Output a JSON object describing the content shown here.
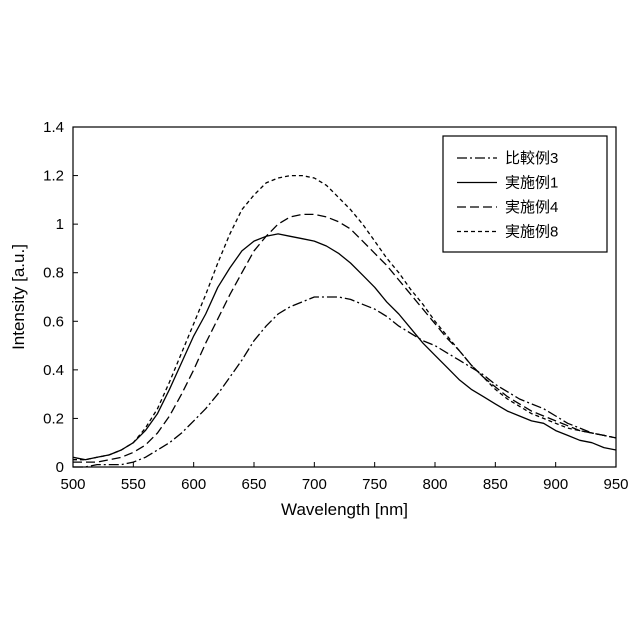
{
  "chart_data": {
    "type": "line",
    "xlabel": "Wavelength [nm]",
    "ylabel": "Intensity [a.u.]",
    "xlim": [
      500,
      950
    ],
    "ylim": [
      0,
      1.4
    ],
    "xticks": [
      500,
      550,
      600,
      650,
      700,
      750,
      800,
      850,
      900,
      950
    ],
    "yticks": [
      0,
      0.2,
      0.4,
      0.6,
      0.8,
      1,
      1.2,
      1.4
    ],
    "grid": false,
    "legend_position": "top-right",
    "series": [
      {
        "name": "比較例3",
        "dash": "dash-dot",
        "color": "#000000",
        "x": [
          500,
          510,
          520,
          530,
          540,
          550,
          560,
          570,
          580,
          590,
          600,
          610,
          620,
          630,
          640,
          650,
          660,
          670,
          680,
          690,
          700,
          710,
          720,
          730,
          740,
          750,
          760,
          770,
          780,
          790,
          800,
          810,
          820,
          830,
          840,
          850,
          860,
          870,
          880,
          890,
          900,
          910,
          920,
          930,
          940,
          950
        ],
        "y": [
          0.0,
          0.0,
          0.01,
          0.01,
          0.01,
          0.02,
          0.04,
          0.07,
          0.1,
          0.14,
          0.19,
          0.24,
          0.3,
          0.37,
          0.44,
          0.52,
          0.58,
          0.63,
          0.66,
          0.68,
          0.7,
          0.7,
          0.7,
          0.69,
          0.67,
          0.65,
          0.62,
          0.58,
          0.55,
          0.52,
          0.5,
          0.47,
          0.44,
          0.41,
          0.38,
          0.34,
          0.31,
          0.28,
          0.26,
          0.24,
          0.21,
          0.18,
          0.16,
          0.14,
          0.13,
          0.12
        ]
      },
      {
        "name": "実施例1",
        "dash": "solid",
        "color": "#000000",
        "x": [
          500,
          510,
          520,
          530,
          540,
          550,
          560,
          570,
          580,
          590,
          600,
          610,
          620,
          630,
          640,
          650,
          660,
          670,
          680,
          690,
          700,
          710,
          720,
          730,
          740,
          750,
          760,
          770,
          780,
          790,
          800,
          810,
          820,
          830,
          840,
          850,
          860,
          870,
          880,
          890,
          900,
          910,
          920,
          930,
          940,
          950
        ],
        "y": [
          0.04,
          0.03,
          0.04,
          0.05,
          0.07,
          0.1,
          0.15,
          0.22,
          0.32,
          0.43,
          0.54,
          0.63,
          0.74,
          0.82,
          0.89,
          0.93,
          0.95,
          0.96,
          0.95,
          0.94,
          0.93,
          0.91,
          0.88,
          0.84,
          0.79,
          0.74,
          0.68,
          0.63,
          0.57,
          0.51,
          0.46,
          0.41,
          0.36,
          0.32,
          0.29,
          0.26,
          0.23,
          0.21,
          0.19,
          0.18,
          0.15,
          0.13,
          0.11,
          0.1,
          0.08,
          0.07
        ]
      },
      {
        "name": "実施例4",
        "dash": "dashed",
        "color": "#000000",
        "x": [
          500,
          510,
          520,
          530,
          540,
          550,
          560,
          570,
          580,
          590,
          600,
          610,
          620,
          630,
          640,
          650,
          660,
          670,
          680,
          690,
          700,
          710,
          720,
          730,
          740,
          750,
          760,
          770,
          780,
          790,
          800,
          810,
          820,
          830,
          840,
          850,
          860,
          870,
          880,
          890,
          900,
          910,
          920,
          930,
          940,
          950
        ],
        "y": [
          0.02,
          0.02,
          0.02,
          0.03,
          0.04,
          0.06,
          0.09,
          0.14,
          0.21,
          0.3,
          0.4,
          0.51,
          0.61,
          0.71,
          0.8,
          0.89,
          0.95,
          1.0,
          1.03,
          1.04,
          1.04,
          1.03,
          1.01,
          0.98,
          0.93,
          0.88,
          0.83,
          0.77,
          0.71,
          0.65,
          0.59,
          0.53,
          0.48,
          0.42,
          0.37,
          0.33,
          0.29,
          0.26,
          0.23,
          0.21,
          0.19,
          0.17,
          0.15,
          0.14,
          0.13,
          0.12
        ]
      },
      {
        "name": "実施例8",
        "dash": "short-dash",
        "color": "#000000",
        "x": [
          500,
          510,
          520,
          530,
          540,
          550,
          560,
          570,
          580,
          590,
          600,
          610,
          620,
          630,
          640,
          650,
          660,
          670,
          680,
          690,
          700,
          710,
          720,
          730,
          740,
          750,
          760,
          770,
          780,
          790,
          800,
          810,
          820,
          830,
          840,
          850,
          860,
          870,
          880,
          890,
          900,
          910,
          920,
          930,
          940,
          950
        ],
        "y": [
          0.03,
          0.03,
          0.04,
          0.05,
          0.07,
          0.1,
          0.16,
          0.24,
          0.35,
          0.47,
          0.59,
          0.71,
          0.84,
          0.96,
          1.06,
          1.12,
          1.17,
          1.19,
          1.2,
          1.2,
          1.19,
          1.16,
          1.11,
          1.06,
          1.0,
          0.93,
          0.86,
          0.8,
          0.73,
          0.67,
          0.6,
          0.54,
          0.48,
          0.42,
          0.37,
          0.32,
          0.28,
          0.25,
          0.22,
          0.2,
          0.18,
          0.16,
          0.15,
          0.14,
          0.13,
          0.12
        ]
      }
    ]
  }
}
